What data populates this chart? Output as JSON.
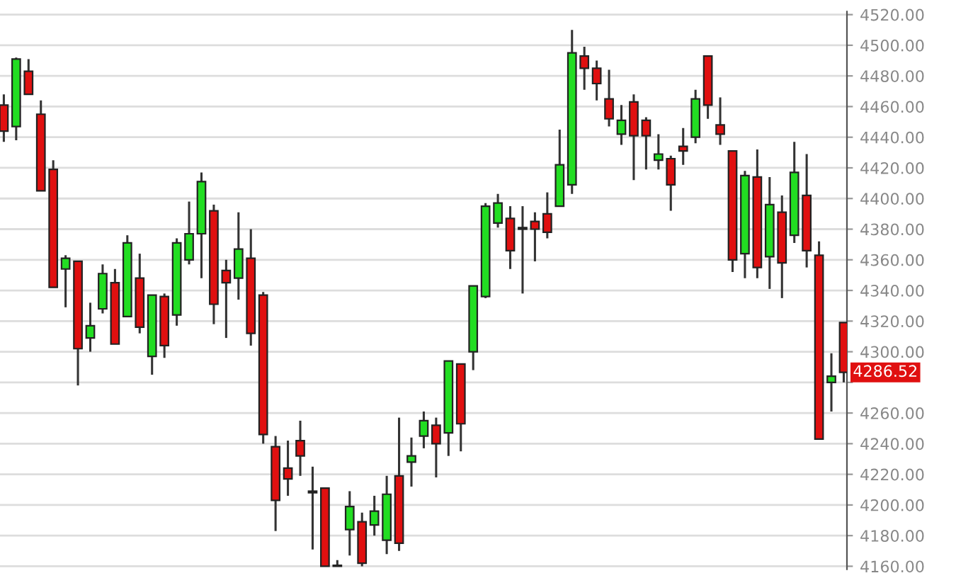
{
  "chart_data": {
    "type": "candlestick",
    "categories": [
      null,
      null,
      null,
      null,
      null,
      null,
      null,
      null,
      null,
      null,
      null,
      null,
      null,
      null,
      null,
      null,
      null,
      null,
      null,
      null,
      null,
      null,
      null,
      null,
      null,
      null,
      null,
      null,
      null,
      null,
      null,
      null,
      null,
      null,
      null,
      null,
      null,
      null,
      null,
      null,
      null,
      null,
      null,
      null,
      null,
      null,
      null,
      null,
      null,
      null,
      null,
      null,
      null,
      null,
      null,
      null,
      null,
      null,
      null,
      null,
      null,
      null,
      null,
      null,
      null,
      null,
      null,
      null,
      null
    ],
    "ohlc": [
      [
        4461,
        4468,
        4437,
        4444
      ],
      [
        4447,
        4492,
        4438,
        4491
      ],
      [
        4483,
        4491,
        4468,
        4468
      ],
      [
        4455,
        4464,
        4405,
        4405
      ],
      [
        4419,
        4425,
        4342,
        4342
      ],
      [
        4354,
        4363,
        4329,
        4361
      ],
      [
        4359,
        4359,
        4278,
        4302
      ],
      [
        4309,
        4332,
        4300,
        4317
      ],
      [
        4328,
        4357,
        4325,
        4351
      ],
      [
        4345,
        4354,
        4305,
        4305
      ],
      [
        4323,
        4376,
        4323,
        4371
      ],
      [
        4348,
        4364,
        4312,
        4316
      ],
      [
        4297,
        4337,
        4285,
        4337
      ],
      [
        4336,
        4338,
        4296,
        4304
      ],
      [
        4324,
        4374,
        4317,
        4371
      ],
      [
        4360,
        4398,
        4357,
        4377
      ],
      [
        4377,
        4417,
        4348,
        4411
      ],
      [
        4392,
        4396,
        4318,
        4331
      ],
      [
        4353,
        4360,
        4309,
        4345
      ],
      [
        4348,
        4391,
        4334,
        4367
      ],
      [
        4361,
        4380,
        4304,
        4312
      ],
      [
        4337,
        4339,
        4240,
        4246
      ],
      [
        4238,
        4245,
        4183,
        4203
      ],
      [
        4224,
        4242,
        4206,
        4217
      ],
      [
        4242,
        4255,
        4219,
        4232
      ],
      [
        4209,
        4225,
        4171,
        4208
      ],
      [
        4211,
        4211,
        4160,
        4160
      ],
      [
        4160,
        4164,
        4160,
        4160
      ],
      [
        4184,
        4209,
        4167,
        4199
      ],
      [
        4189,
        4195,
        4160,
        4162
      ],
      [
        4187,
        4206,
        4180,
        4196
      ],
      [
        4177,
        4219,
        4168,
        4207
      ],
      [
        4219,
        4257,
        4170,
        4175
      ],
      [
        4228,
        4244,
        4212,
        4232
      ],
      [
        4245,
        4261,
        4237,
        4255
      ],
      [
        4252,
        4257,
        4218,
        4240
      ],
      [
        4247,
        4294,
        4232,
        4294
      ],
      [
        4292,
        4292,
        4235,
        4253
      ],
      [
        4300,
        4343,
        4288,
        4343
      ],
      [
        4336,
        4397,
        4335,
        4395
      ],
      [
        4384,
        4403,
        4381,
        4397
      ],
      [
        4387,
        4395,
        4354,
        4366
      ],
      [
        4380,
        4395,
        4338,
        4381
      ],
      [
        4385,
        4391,
        4359,
        4380
      ],
      [
        4390,
        4404,
        4374,
        4378
      ],
      [
        4395,
        4445,
        4395,
        4422
      ],
      [
        4409,
        4510,
        4403,
        4495
      ],
      [
        4493,
        4499,
        4471,
        4485
      ],
      [
        4485,
        4490,
        4464,
        4475
      ],
      [
        4465,
        4484,
        4447,
        4452
      ],
      [
        4442,
        4461,
        4435,
        4451
      ],
      [
        4463,
        4468,
        4412,
        4441
      ],
      [
        4451,
        4453,
        4419,
        4441
      ],
      [
        4425,
        4442,
        4419,
        4429
      ],
      [
        4426,
        4428,
        4392,
        4409
      ],
      [
        4434,
        4446,
        4422,
        4431
      ],
      [
        4440,
        4471,
        4436,
        4465
      ],
      [
        4493,
        4493,
        4452,
        4461
      ],
      [
        4448,
        4466,
        4435,
        4442
      ],
      [
        4431,
        4431,
        4352,
        4360
      ],
      [
        4364,
        4418,
        4348,
        4415
      ],
      [
        4414,
        4432,
        4348,
        4355
      ],
      [
        4362,
        4414,
        4341,
        4396
      ],
      [
        4391,
        4402,
        4335,
        4358
      ],
      [
        4376,
        4437,
        4371,
        4417
      ],
      [
        4402,
        4429,
        4355,
        4366
      ],
      [
        4363,
        4372,
        4243,
        4243
      ],
      [
        4280,
        4299,
        4261,
        4284
      ],
      [
        4319,
        4319,
        4280,
        4286.52
      ]
    ],
    "colors": [
      "#e01010",
      "#22dd22",
      "#e01010",
      "#e01010",
      "#e01010",
      "#22dd22",
      "#e01010",
      "#22dd22",
      "#22dd22",
      "#e01010",
      "#22dd22",
      "#e01010",
      "#22dd22",
      "#e01010",
      "#22dd22",
      "#22dd22",
      "#22dd22",
      "#e01010",
      "#e01010",
      "#22dd22",
      "#e01010",
      "#e01010",
      "#e01010",
      "#e01010",
      "#e01010",
      "#e01010",
      "#e01010",
      "#e01010",
      "#22dd22",
      "#e01010",
      "#22dd22",
      "#22dd22",
      "#e01010",
      "#22dd22",
      "#22dd22",
      "#e01010",
      "#22dd22",
      "#e01010",
      "#22dd22",
      "#22dd22",
      "#22dd22",
      "#e01010",
      "#22dd22",
      "#e01010",
      "#e01010",
      "#22dd22",
      "#22dd22",
      "#e01010",
      "#e01010",
      "#e01010",
      "#22dd22",
      "#e01010",
      "#e01010",
      "#22dd22",
      "#e01010",
      "#e01010",
      "#22dd22",
      "#e01010",
      "#e01010",
      "#e01010",
      "#22dd22",
      "#e01010",
      "#22dd22",
      "#e01010",
      "#22dd22",
      "#e01010",
      "#e01010",
      "#22dd22",
      "#e01010"
    ],
    "ylim": [
      4158,
      4522
    ],
    "yticks": [
      {
        "value": 4160,
        "label": "4160.00"
      },
      {
        "value": 4180,
        "label": "4180.00"
      },
      {
        "value": 4200,
        "label": "4200.00"
      },
      {
        "value": 4220,
        "label": "4220.00"
      },
      {
        "value": 4240,
        "label": "4240.00"
      },
      {
        "value": 4260,
        "label": "4260.00"
      },
      {
        "value": 4280,
        "label": null
      },
      {
        "value": 4300,
        "label": "4300.00"
      },
      {
        "value": 4320,
        "label": "4320.00"
      },
      {
        "value": 4340,
        "label": "4340.00"
      },
      {
        "value": 4360,
        "label": "4360.00"
      },
      {
        "value": 4380,
        "label": "4380.00"
      },
      {
        "value": 4400,
        "label": "4400.00"
      },
      {
        "value": 4420,
        "label": "4420.00"
      },
      {
        "value": 4440,
        "label": "4440.00"
      },
      {
        "value": 4460,
        "label": "4460.00"
      },
      {
        "value": 4480,
        "label": "4480.00"
      },
      {
        "value": 4500,
        "label": "4500.00"
      },
      {
        "value": 4520,
        "label": "4520.00"
      }
    ],
    "grid": "y",
    "tick_labels": "y",
    "annotations": [
      "4286.52"
    ]
  }
}
